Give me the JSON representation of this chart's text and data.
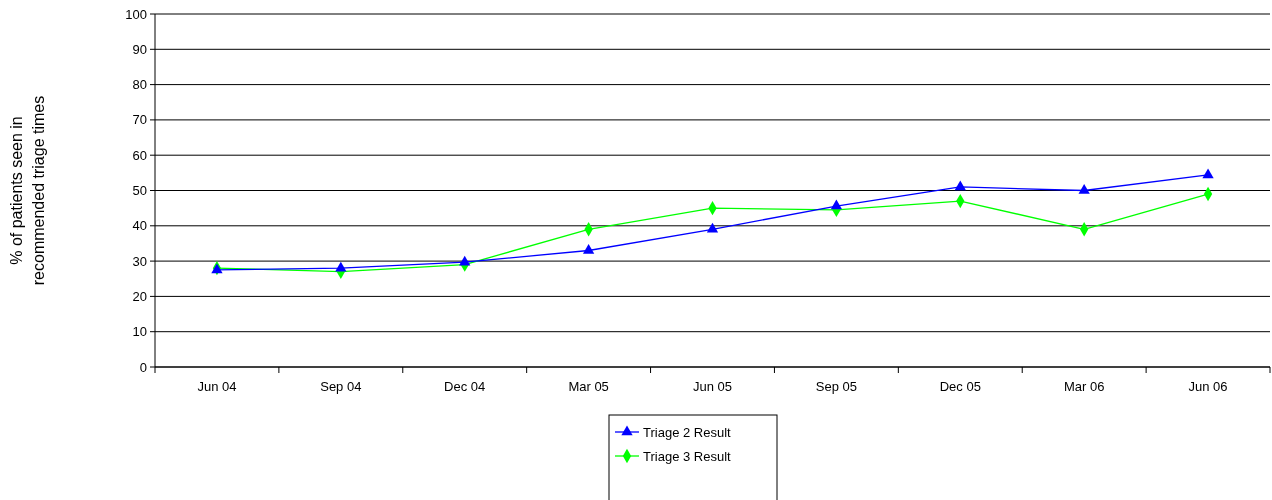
{
  "chart_data": {
    "type": "line",
    "ylabel": "% of patients seen in recommended triage times",
    "categories": [
      "Jun 04",
      "Sep 04",
      "Dec 04",
      "Mar 05",
      "Jun 05",
      "Sep 05",
      "Dec 05",
      "Mar 06",
      "Jun 06"
    ],
    "series": [
      {
        "name": "Triage 2 Result",
        "color": "#0000ff",
        "marker": "triangle",
        "values": [
          27.5,
          28,
          29.7,
          33,
          39,
          45.6,
          51,
          50,
          54.4
        ]
      },
      {
        "name": "Triage 3 Result",
        "color": "#00ff00",
        "marker": "diamond",
        "values": [
          28,
          27,
          29,
          39,
          45,
          44.5,
          47,
          39,
          49
        ]
      }
    ],
    "ylim": [
      0,
      100
    ],
    "yticks": [
      0,
      10,
      20,
      30,
      40,
      50,
      60,
      70,
      80,
      90,
      100
    ],
    "grid": "y",
    "legend": "bottom"
  }
}
